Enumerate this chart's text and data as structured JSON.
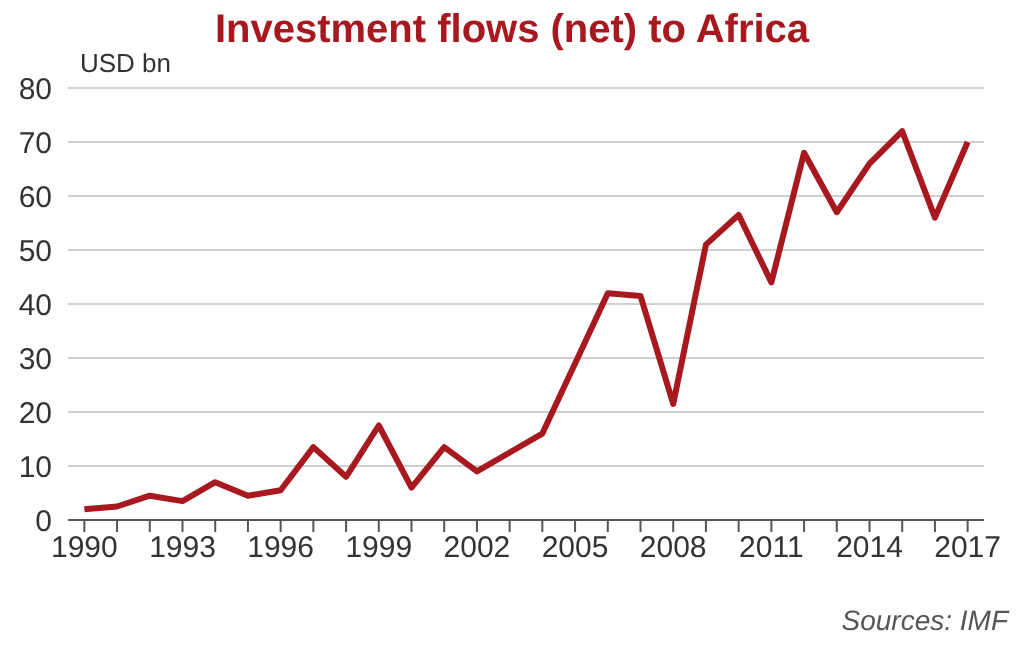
{
  "chart_data": {
    "type": "line",
    "title": "Investment flows (net) to Africa",
    "ylabel": "USD bn",
    "categories": [
      "1990",
      null,
      null,
      "1993",
      null,
      null,
      "1996",
      null,
      null,
      "1999",
      null,
      null,
      "2002",
      null,
      null,
      "2005",
      null,
      null,
      "2008",
      null,
      null,
      "2011",
      null,
      null,
      "2014",
      null,
      null,
      "2017"
    ],
    "series": [
      {
        "color": "#a8191f",
        "values": [
          2,
          2.5,
          4.5,
          3.5,
          7,
          4.5,
          5.5,
          13.5,
          8,
          17.5,
          6,
          13.5,
          9,
          12.5,
          16,
          29,
          42,
          41.5,
          21.5,
          51,
          56.5,
          44,
          68,
          57,
          66,
          72,
          56,
          70
        ]
      }
    ],
    "ylim": [
      0,
      80
    ],
    "yticks": [
      0,
      10,
      20,
      30,
      40,
      50,
      60,
      70,
      80
    ],
    "grid": "y",
    "legend": false,
    "marker": "none",
    "line_style": "solid",
    "annotations": [
      "Sources: IMF"
    ]
  }
}
